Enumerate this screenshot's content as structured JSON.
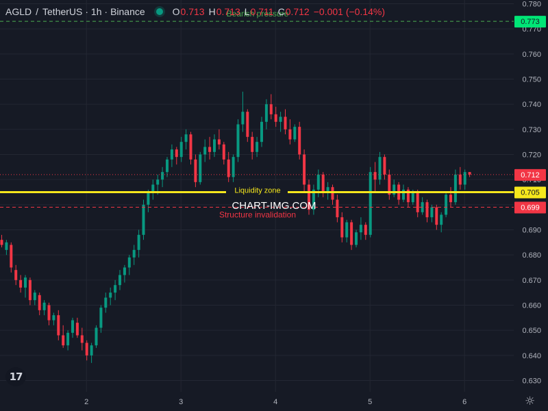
{
  "header": {
    "symbol": "AGLD",
    "separator": "/",
    "quote": "TetherUS",
    "interval": "· 1h ·",
    "exchange": "Binance",
    "o_label": "O",
    "o_value": "0.713",
    "h_label": "H",
    "h_value": "0.713",
    "l_label": "L",
    "l_value": "0.711",
    "c_label": "C",
    "c_value": "0.712",
    "change": "−0.001 (−0.14%)"
  },
  "watermark": "CHART-IMG.COM",
  "logo_text": "17",
  "icons": {
    "status": "status-dot-icon",
    "settings": "gear-icon",
    "logo": "tradingview-logo-icon"
  },
  "colors": {
    "up": "#089981",
    "down": "#f23645",
    "background": "#161a25",
    "bearish_line": "#4caf50",
    "liquidity_line": "#f5e71c",
    "invalidation_line": "#f23645"
  },
  "chart_data": {
    "type": "candlestick",
    "y_axis": {
      "ticks": [
        "0.630",
        "0.640",
        "0.650",
        "0.660",
        "0.670",
        "0.680",
        "0.690",
        "0.700",
        "0.710",
        "0.720",
        "0.730",
        "0.740",
        "0.750",
        "0.760",
        "0.770",
        "0.780"
      ],
      "range": [
        0.6255,
        0.7815
      ],
      "side": "right"
    },
    "x_axis": {
      "ticks": [
        "2",
        "3",
        "4",
        "5",
        "6"
      ],
      "tick_bar_index": [
        18,
        38,
        58,
        78,
        98
      ]
    },
    "grid": true,
    "levels": [
      {
        "name": "Bearish pressure",
        "value": 0.773,
        "label": "0.773",
        "color": "#4caf50",
        "style": "dashed"
      },
      {
        "name": "Liquidity zone",
        "value": 0.705,
        "label": "0.705",
        "color": "#f5e71c",
        "style": "solid"
      },
      {
        "name": "Structure invalidation",
        "value": 0.699,
        "label": "0.699",
        "color": "#f23645",
        "style": "dashed"
      }
    ],
    "last_price": {
      "value": 0.712,
      "label": "0.712",
      "color": "#f23645"
    },
    "candles": [
      [
        0.686,
        0.688,
        0.683,
        0.684
      ],
      [
        0.682,
        0.686,
        0.68,
        0.685
      ],
      [
        0.684,
        0.685,
        0.673,
        0.675
      ],
      [
        0.674,
        0.676,
        0.668,
        0.67
      ],
      [
        0.67,
        0.672,
        0.665,
        0.667
      ],
      [
        0.667,
        0.672,
        0.663,
        0.671
      ],
      [
        0.67,
        0.671,
        0.66,
        0.662
      ],
      [
        0.662,
        0.666,
        0.66,
        0.665
      ],
      [
        0.664,
        0.665,
        0.656,
        0.658
      ],
      [
        0.658,
        0.662,
        0.656,
        0.661
      ],
      [
        0.66,
        0.661,
        0.652,
        0.654
      ],
      [
        0.654,
        0.657,
        0.652,
        0.656
      ],
      [
        0.656,
        0.658,
        0.646,
        0.648
      ],
      [
        0.648,
        0.652,
        0.643,
        0.644
      ],
      [
        0.644,
        0.65,
        0.642,
        0.649
      ],
      [
        0.649,
        0.655,
        0.647,
        0.654
      ],
      [
        0.653,
        0.655,
        0.647,
        0.648
      ],
      [
        0.648,
        0.651,
        0.642,
        0.645
      ],
      [
        0.645,
        0.646,
        0.638,
        0.64
      ],
      [
        0.64,
        0.645,
        0.637,
        0.644
      ],
      [
        0.644,
        0.652,
        0.643,
        0.651
      ],
      [
        0.651,
        0.66,
        0.649,
        0.659
      ],
      [
        0.659,
        0.665,
        0.657,
        0.663
      ],
      [
        0.663,
        0.667,
        0.66,
        0.665
      ],
      [
        0.665,
        0.67,
        0.662,
        0.668
      ],
      [
        0.668,
        0.674,
        0.666,
        0.672
      ],
      [
        0.672,
        0.676,
        0.669,
        0.675
      ],
      [
        0.675,
        0.68,
        0.672,
        0.679
      ],
      [
        0.679,
        0.684,
        0.676,
        0.682
      ],
      [
        0.682,
        0.69,
        0.679,
        0.688
      ],
      [
        0.688,
        0.702,
        0.686,
        0.7
      ],
      [
        0.7,
        0.706,
        0.697,
        0.705
      ],
      [
        0.705,
        0.71,
        0.702,
        0.708
      ],
      [
        0.708,
        0.712,
        0.704,
        0.71
      ],
      [
        0.71,
        0.715,
        0.707,
        0.713
      ],
      [
        0.713,
        0.719,
        0.711,
        0.718
      ],
      [
        0.718,
        0.724,
        0.715,
        0.722
      ],
      [
        0.722,
        0.723,
        0.716,
        0.719
      ],
      [
        0.719,
        0.727,
        0.717,
        0.725
      ],
      [
        0.725,
        0.73,
        0.722,
        0.728
      ],
      [
        0.728,
        0.729,
        0.716,
        0.718
      ],
      [
        0.718,
        0.72,
        0.707,
        0.709
      ],
      [
        0.709,
        0.721,
        0.708,
        0.72
      ],
      [
        0.72,
        0.726,
        0.717,
        0.723
      ],
      [
        0.723,
        0.727,
        0.718,
        0.721
      ],
      [
        0.721,
        0.728,
        0.719,
        0.726
      ],
      [
        0.726,
        0.73,
        0.722,
        0.724
      ],
      [
        0.724,
        0.725,
        0.716,
        0.718
      ],
      [
        0.718,
        0.721,
        0.709,
        0.711
      ],
      [
        0.711,
        0.72,
        0.709,
        0.719
      ],
      [
        0.719,
        0.734,
        0.717,
        0.732
      ],
      [
        0.732,
        0.745,
        0.729,
        0.737
      ],
      [
        0.737,
        0.738,
        0.725,
        0.727
      ],
      [
        0.727,
        0.729,
        0.718,
        0.721
      ],
      [
        0.721,
        0.727,
        0.719,
        0.725
      ],
      [
        0.725,
        0.735,
        0.723,
        0.733
      ],
      [
        0.733,
        0.742,
        0.73,
        0.74
      ],
      [
        0.74,
        0.744,
        0.734,
        0.736
      ],
      [
        0.736,
        0.739,
        0.731,
        0.733
      ],
      [
        0.733,
        0.737,
        0.729,
        0.735
      ],
      [
        0.735,
        0.738,
        0.728,
        0.73
      ],
      [
        0.73,
        0.734,
        0.724,
        0.726
      ],
      [
        0.726,
        0.732,
        0.725,
        0.731
      ],
      [
        0.731,
        0.733,
        0.718,
        0.72
      ],
      [
        0.72,
        0.722,
        0.705,
        0.708
      ],
      [
        0.708,
        0.71,
        0.696,
        0.698
      ],
      [
        0.698,
        0.708,
        0.696,
        0.706
      ],
      [
        0.706,
        0.714,
        0.703,
        0.712
      ],
      [
        0.712,
        0.713,
        0.703,
        0.705
      ],
      [
        0.705,
        0.709,
        0.702,
        0.707
      ],
      [
        0.707,
        0.708,
        0.7,
        0.702
      ],
      [
        0.702,
        0.704,
        0.693,
        0.695
      ],
      [
        0.695,
        0.697,
        0.685,
        0.687
      ],
      [
        0.687,
        0.694,
        0.685,
        0.693
      ],
      [
        0.693,
        0.694,
        0.682,
        0.684
      ],
      [
        0.684,
        0.69,
        0.683,
        0.689
      ],
      [
        0.689,
        0.695,
        0.686,
        0.692
      ],
      [
        0.692,
        0.693,
        0.686,
        0.688
      ],
      [
        0.688,
        0.715,
        0.687,
        0.713
      ],
      [
        0.713,
        0.717,
        0.705,
        0.71
      ],
      [
        0.71,
        0.721,
        0.708,
        0.719
      ],
      [
        0.719,
        0.72,
        0.71,
        0.712
      ],
      [
        0.712,
        0.714,
        0.702,
        0.704
      ],
      [
        0.704,
        0.71,
        0.703,
        0.708
      ],
      [
        0.708,
        0.709,
        0.7,
        0.702
      ],
      [
        0.702,
        0.708,
        0.701,
        0.706
      ],
      [
        0.706,
        0.707,
        0.699,
        0.701
      ],
      [
        0.701,
        0.706,
        0.7,
        0.705
      ],
      [
        0.705,
        0.706,
        0.695,
        0.697
      ],
      [
        0.697,
        0.703,
        0.696,
        0.701
      ],
      [
        0.701,
        0.702,
        0.693,
        0.695
      ],
      [
        0.695,
        0.7,
        0.693,
        0.699
      ],
      [
        0.699,
        0.7,
        0.69,
        0.692
      ],
      [
        0.692,
        0.697,
        0.689,
        0.696
      ],
      [
        0.696,
        0.705,
        0.695,
        0.704
      ],
      [
        0.704,
        0.707,
        0.699,
        0.701
      ],
      [
        0.701,
        0.714,
        0.7,
        0.712
      ],
      [
        0.712,
        0.715,
        0.706,
        0.708
      ],
      [
        0.708,
        0.714,
        0.706,
        0.713
      ],
      [
        0.713,
        0.713,
        0.711,
        0.712
      ]
    ]
  }
}
